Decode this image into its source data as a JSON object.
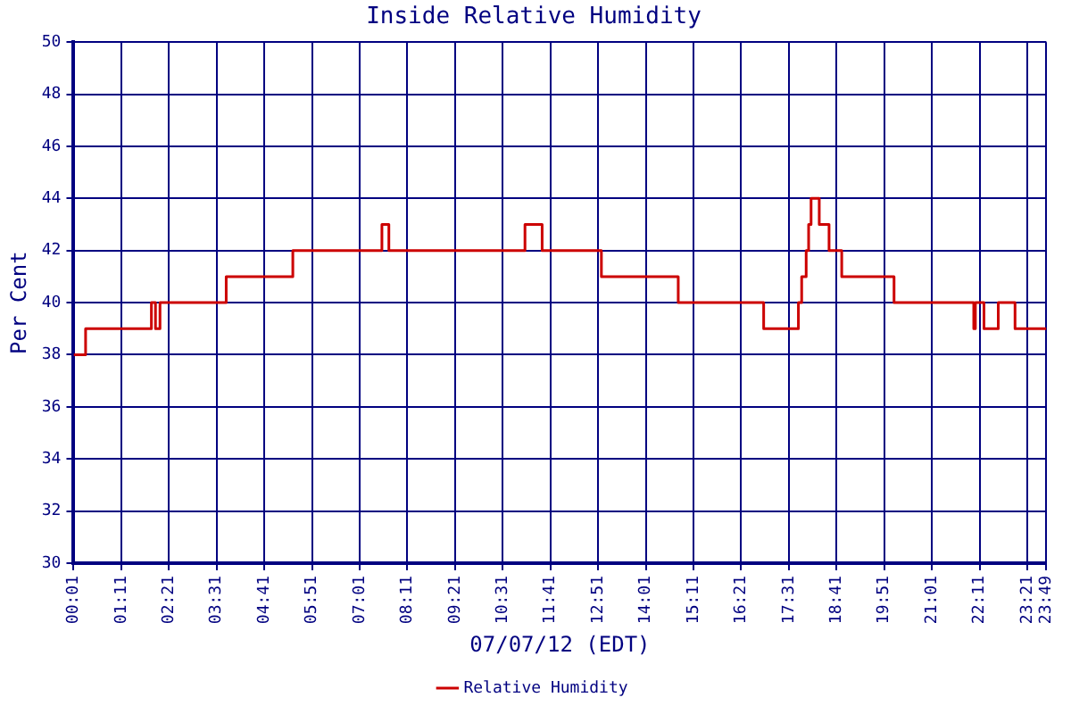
{
  "chart_data": {
    "type": "step",
    "title": "Inside Relative Humidity",
    "xlabel": "07/07/12 (EDT)",
    "ylabel": "Per Cent",
    "x": [
      0.017,
      0.31,
      1.92,
      2.02,
      2.13,
      3.75,
      5.38,
      7.56,
      7.73,
      11.06,
      11.48,
      12.93,
      14.81,
      16.9,
      17.75,
      17.83,
      17.94,
      18.0,
      18.06,
      18.26,
      18.5,
      18.81,
      20.09,
      22.04,
      22.08,
      22.29,
      22.64,
      23.05,
      23.8167
    ],
    "series": [
      {
        "name": "Relative Humidity",
        "color": "#cc0000",
        "values": [
          38,
          39,
          40,
          39,
          40,
          41,
          42,
          43,
          42,
          43,
          42,
          41,
          40,
          39,
          40,
          41,
          42,
          43,
          44,
          43,
          42,
          41,
          40,
          39,
          40,
          39,
          40,
          39,
          39
        ]
      }
    ],
    "xlim": [
      0.0167,
      23.8167
    ],
    "xticks": [
      {
        "value": 0.0167,
        "label": "00:01"
      },
      {
        "value": 1.1833,
        "label": "01:11"
      },
      {
        "value": 2.35,
        "label": "02:21"
      },
      {
        "value": 3.5167,
        "label": "03:31"
      },
      {
        "value": 4.6833,
        "label": "04:41"
      },
      {
        "value": 5.85,
        "label": "05:51"
      },
      {
        "value": 7.0167,
        "label": "07:01"
      },
      {
        "value": 8.1833,
        "label": "08:11"
      },
      {
        "value": 9.35,
        "label": "09:21"
      },
      {
        "value": 10.5167,
        "label": "10:31"
      },
      {
        "value": 11.6833,
        "label": "11:41"
      },
      {
        "value": 12.85,
        "label": "12:51"
      },
      {
        "value": 14.0167,
        "label": "14:01"
      },
      {
        "value": 15.1833,
        "label": "15:11"
      },
      {
        "value": 16.35,
        "label": "16:21"
      },
      {
        "value": 17.5167,
        "label": "17:31"
      },
      {
        "value": 18.6833,
        "label": "18:41"
      },
      {
        "value": 19.85,
        "label": "19:51"
      },
      {
        "value": 21.0167,
        "label": "21:01"
      },
      {
        "value": 22.1833,
        "label": "22:11"
      },
      {
        "value": 23.35,
        "label": "23:21"
      },
      {
        "value": 23.8167,
        "label": "23:49"
      }
    ],
    "ylim": [
      30,
      50
    ],
    "yticks": [
      30,
      32,
      34,
      36,
      38,
      40,
      42,
      44,
      46,
      48,
      50
    ],
    "grid": true,
    "legend": "bottom",
    "marker": "none",
    "line_style": "solid"
  }
}
